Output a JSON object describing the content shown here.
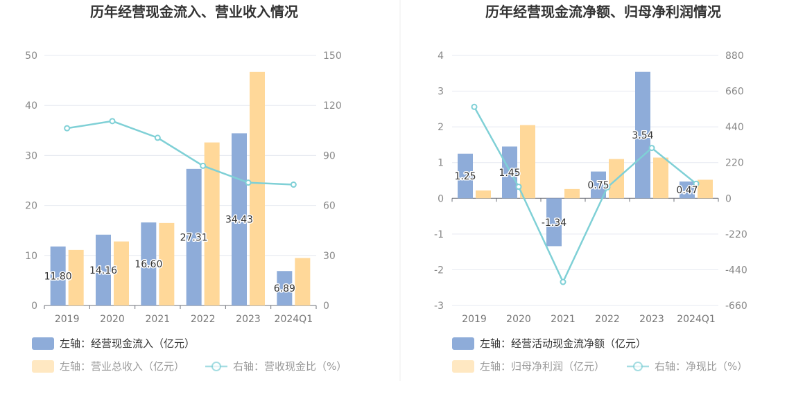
{
  "colors": {
    "bar_primary": "#8eacd9",
    "bar_secondary": "#ffd899",
    "line": "#7fd0d6"
  },
  "chart_data": [
    {
      "type": "bar",
      "title": "历年经营现金流入、营业收入情况",
      "categories": [
        "2019",
        "2020",
        "2021",
        "2022",
        "2023",
        "2024Q1"
      ],
      "left_axis": {
        "ylim": [
          0,
          50
        ],
        "ticks": [
          "0",
          "10",
          "20",
          "30",
          "40",
          "50"
        ]
      },
      "right_axis": {
        "ylim": [
          0,
          150
        ],
        "ticks": [
          "0",
          "30",
          "60",
          "90",
          "120",
          "150"
        ]
      },
      "series": [
        {
          "name": "经营现金流入",
          "axis": "left",
          "type": "bar",
          "values": [
            11.8,
            14.16,
            16.6,
            27.31,
            34.43,
            6.89
          ],
          "labels": [
            "11.80",
            "14.16",
            "16.60",
            "27.31",
            "34.43",
            "6.89"
          ]
        },
        {
          "name": "营业总收入",
          "axis": "left",
          "type": "bar",
          "values": [
            11.1,
            12.8,
            16.5,
            32.6,
            46.7,
            9.5
          ]
        },
        {
          "name": "营收现金比",
          "axis": "right",
          "type": "line",
          "values": [
            106.3,
            110.6,
            100.6,
            83.8,
            73.7,
            72.5
          ]
        }
      ],
      "legend": [
        {
          "text": "左轴：经营现金流入（亿元）",
          "kind": "bar_primary",
          "muted": false
        },
        {
          "text": "左轴：营业总收入（亿元）",
          "kind": "bar_secondary",
          "muted": true
        },
        {
          "text": "右轴：营收现金比（%）",
          "kind": "line",
          "muted": true
        }
      ]
    },
    {
      "type": "bar",
      "title": "历年经营现金流净额、归母净利润情况",
      "categories": [
        "2019",
        "2020",
        "2021",
        "2022",
        "2023",
        "2024Q1"
      ],
      "left_axis": {
        "ylim": [
          -3,
          4
        ],
        "ticks": [
          "-3",
          "-2",
          "-1",
          "0",
          "1",
          "2",
          "3",
          "4"
        ]
      },
      "right_axis": {
        "ylim": [
          -660,
          880
        ],
        "ticks": [
          "-660",
          "-440",
          "-220",
          "0",
          "220",
          "440",
          "660",
          "880"
        ]
      },
      "series": [
        {
          "name": "经营活动现金流净额",
          "axis": "left",
          "type": "bar",
          "values": [
            1.25,
            1.45,
            -1.34,
            0.75,
            3.54,
            0.47
          ],
          "labels": [
            "1.25",
            "1.45",
            "-1.34",
            "0.75",
            "3.54",
            "0.47"
          ]
        },
        {
          "name": "归母净利润",
          "axis": "left",
          "type": "bar",
          "values": [
            0.22,
            2.05,
            0.26,
            1.1,
            1.14,
            0.52
          ]
        },
        {
          "name": "净现比",
          "axis": "right",
          "type": "line",
          "values": [
            563,
            71,
            -515,
            68,
            310,
            90
          ]
        }
      ],
      "legend": [
        {
          "text": "左轴：经营活动现金流净额（亿元）",
          "kind": "bar_primary",
          "muted": false
        },
        {
          "text": "左轴：归母净利润（亿元）",
          "kind": "bar_secondary",
          "muted": true
        },
        {
          "text": "右轴：净现比（%）",
          "kind": "line",
          "muted": true
        }
      ]
    }
  ]
}
